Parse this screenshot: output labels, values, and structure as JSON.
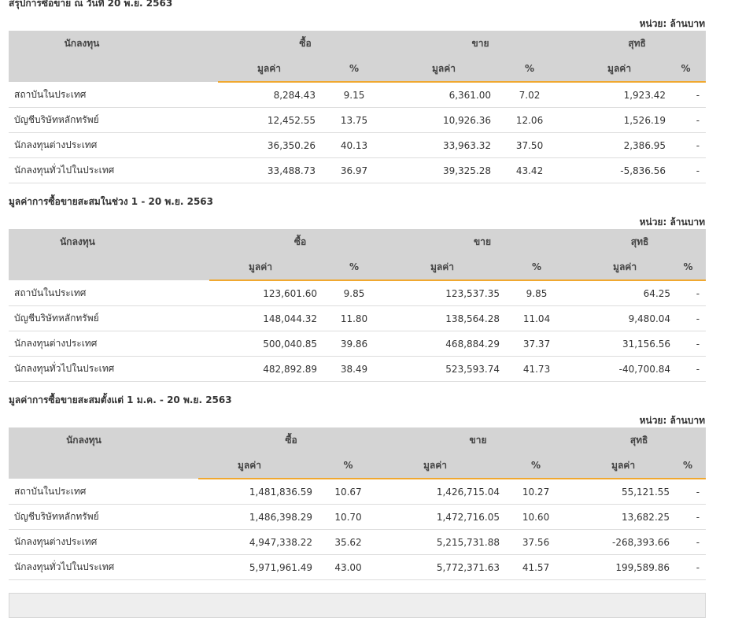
{
  "unit_label": "หน่วย: ล้านบาท",
  "headers": {
    "investor": "นักลงทุน",
    "buy": "ซื้อ",
    "sell": "ขาย",
    "net": "สุทธิ",
    "value": "มูลค่า",
    "percent": "%"
  },
  "sections": [
    {
      "title": "สรุปการซื้อขาย ณ วันที่ 20 พ.ย. 2563",
      "rows": [
        {
          "name": "สถาบันในประเทศ",
          "buy_value": "8,284.43",
          "buy_pct": "9.15",
          "sell_value": "6,361.00",
          "sell_pct": "7.02",
          "net_value": "1,923.42",
          "net_pct": "-"
        },
        {
          "name": "บัญชีบริษัทหลักทรัพย์",
          "buy_value": "12,452.55",
          "buy_pct": "13.75",
          "sell_value": "10,926.36",
          "sell_pct": "12.06",
          "net_value": "1,526.19",
          "net_pct": "-"
        },
        {
          "name": "นักลงทุนต่างประเทศ",
          "buy_value": "36,350.26",
          "buy_pct": "40.13",
          "sell_value": "33,963.32",
          "sell_pct": "37.50",
          "net_value": "2,386.95",
          "net_pct": "-"
        },
        {
          "name": "นักลงทุนทั่วไปในประเทศ",
          "buy_value": "33,488.73",
          "buy_pct": "36.97",
          "sell_value": "39,325.28",
          "sell_pct": "43.42",
          "net_value": "-5,836.56",
          "net_pct": "-"
        }
      ]
    },
    {
      "title": "มูลค่าการซื้อขายสะสมในช่วง 1 - 20 พ.ย. 2563",
      "rows": [
        {
          "name": "สถาบันในประเทศ",
          "buy_value": "123,601.60",
          "buy_pct": "9.85",
          "sell_value": "123,537.35",
          "sell_pct": "9.85",
          "net_value": "64.25",
          "net_pct": "-"
        },
        {
          "name": "บัญชีบริษัทหลักทรัพย์",
          "buy_value": "148,044.32",
          "buy_pct": "11.80",
          "sell_value": "138,564.28",
          "sell_pct": "11.04",
          "net_value": "9,480.04",
          "net_pct": "-"
        },
        {
          "name": "นักลงทุนต่างประเทศ",
          "buy_value": "500,040.85",
          "buy_pct": "39.86",
          "sell_value": "468,884.29",
          "sell_pct": "37.37",
          "net_value": "31,156.56",
          "net_pct": "-"
        },
        {
          "name": "นักลงทุนทั่วไปในประเทศ",
          "buy_value": "482,892.89",
          "buy_pct": "38.49",
          "sell_value": "523,593.74",
          "sell_pct": "41.73",
          "net_value": "-40,700.84",
          "net_pct": "-"
        }
      ]
    },
    {
      "title": "มูลค่าการซื้อขายสะสมตั้งแต่ 1 ม.ค. - 20 พ.ย. 2563",
      "rows": [
        {
          "name": "สถาบันในประเทศ",
          "buy_value": "1,481,836.59",
          "buy_pct": "10.67",
          "sell_value": "1,426,715.04",
          "sell_pct": "10.27",
          "net_value": "55,121.55",
          "net_pct": "-"
        },
        {
          "name": "บัญชีบริษัทหลักทรัพย์",
          "buy_value": "1,486,398.29",
          "buy_pct": "10.70",
          "sell_value": "1,472,716.05",
          "sell_pct": "10.60",
          "net_value": "13,682.25",
          "net_pct": "-"
        },
        {
          "name": "นักลงทุนต่างประเทศ",
          "buy_value": "4,947,338.22",
          "buy_pct": "35.62",
          "sell_value": "5,215,731.88",
          "sell_pct": "37.56",
          "net_value": "-268,393.66",
          "net_pct": "-"
        },
        {
          "name": "นักลงทุนทั่วไปในประเทศ",
          "buy_value": "5,971,961.49",
          "buy_pct": "43.00",
          "sell_value": "5,772,371.63",
          "sell_pct": "41.57",
          "net_value": "199,589.86",
          "net_pct": "-"
        }
      ]
    }
  ],
  "colors": {
    "positive": "#2a9a2a",
    "negative": "#e02020",
    "header_bg": "#d4d4d4",
    "accent_underline": "#f0a830"
  }
}
